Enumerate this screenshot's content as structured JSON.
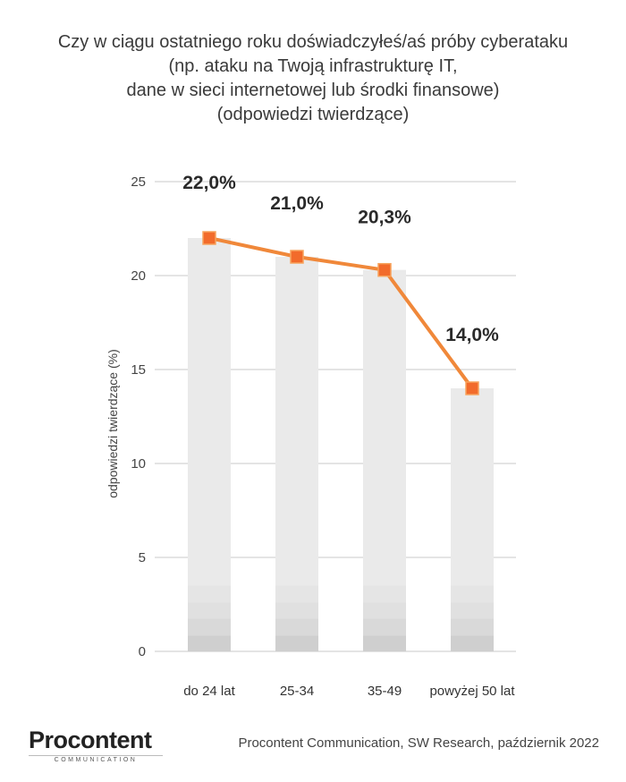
{
  "title_lines": [
    "Czy w ciągu ostatniego roku doświadczyłeś/aś próby cyberataku",
    "(np. ataku na Twoją infrastrukturę IT,",
    "dane w sieci internetowej lub środki finansowe)",
    "(odpowiedzi twierdzące)"
  ],
  "chart_data": {
    "type": "bar",
    "categories": [
      "do 24 lat",
      "25-34",
      "35-49",
      "powyżej 50 lat"
    ],
    "values": [
      22.0,
      21.0,
      20.3,
      14.0
    ],
    "data_labels": [
      "22,0%",
      "21,0%",
      "20,3%",
      "14,0%"
    ],
    "line_overlay": true,
    "ylabel": "odpowiedzi twierdzące (%)",
    "xlabel": "",
    "ylim": [
      0,
      25
    ],
    "yticks": [
      0,
      5,
      10,
      15,
      20,
      25
    ],
    "grid": true,
    "colors": {
      "bar": "#eaeaea",
      "bar_base": "#d0d0d0",
      "line": "#f0883a",
      "marker": "#f26b2b",
      "grid": "#c8c8c8"
    }
  },
  "footer": {
    "brand": "Procontent",
    "brand_sub": "COMMUNICATION",
    "source": "Procontent Communication, SW Research, październik 2022"
  }
}
